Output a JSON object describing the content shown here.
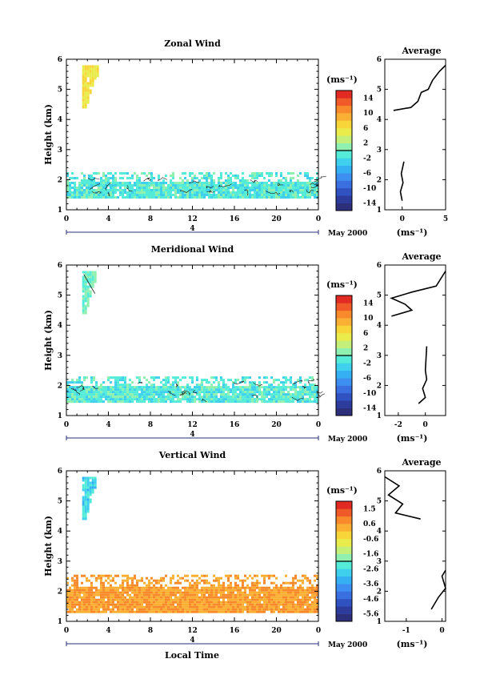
{
  "common": {
    "x_ticks": [
      "0",
      "4",
      "8",
      "12",
      "16",
      "20",
      "0"
    ],
    "y_label": "Height (km)",
    "y_ticks": [
      "1",
      "2",
      "3",
      "4",
      "5",
      "6"
    ],
    "date_label": "May 2000",
    "date_day": "4",
    "x_label": "Local Time",
    "avg_title": "Average",
    "unit": "(ms⁻¹)"
  },
  "chart_data": [
    {
      "type": "heatmap",
      "title": "Zonal Wind",
      "colorbar_ticks": [
        "14",
        "10",
        "6",
        "2",
        "-2",
        "-6",
        "-10",
        "-14"
      ],
      "colorbar_range": [
        -16,
        16
      ],
      "x_range": [
        0,
        24
      ],
      "y_range": [
        1,
        6
      ],
      "regions": [
        {
          "x": [
            1.5,
            3.0
          ],
          "y": [
            4.4,
            5.8
          ],
          "value": 6
        },
        {
          "x": [
            0,
            24
          ],
          "y": [
            1.45,
            2.25
          ],
          "value": -1
        }
      ],
      "average": {
        "type": "line",
        "xlim": [
          -2,
          5
        ],
        "x_ticks": [
          "0",
          "5"
        ],
        "upper": [
          [
            -1,
            4.3
          ],
          [
            1,
            4.4
          ],
          [
            1.8,
            4.6
          ],
          [
            2.2,
            4.9
          ],
          [
            3,
            5.0
          ],
          [
            3.5,
            5.3
          ],
          [
            4.3,
            5.6
          ],
          [
            5,
            5.8
          ]
        ],
        "lower": [
          [
            0,
            1.3
          ],
          [
            -0.2,
            1.6
          ],
          [
            0.1,
            1.9
          ],
          [
            -0.1,
            2.2
          ],
          [
            0.2,
            2.6
          ]
        ]
      }
    },
    {
      "type": "heatmap",
      "title": "Meridional Wind",
      "colorbar_ticks": [
        "14",
        "10",
        "6",
        "2",
        "-2",
        "-6",
        "-10",
        "-14"
      ],
      "colorbar_range": [
        -16,
        16
      ],
      "x_range": [
        0,
        24
      ],
      "y_range": [
        1,
        6
      ],
      "regions": [
        {
          "x": [
            1.5,
            2.8
          ],
          "y": [
            4.4,
            5.8
          ],
          "value": 0
        },
        {
          "x": [
            0,
            24
          ],
          "y": [
            1.45,
            2.3
          ],
          "value": -1
        }
      ],
      "average": {
        "type": "line",
        "xlim": [
          -3,
          1.5
        ],
        "x_ticks": [
          "-2",
          "0"
        ],
        "upper": [
          [
            -2.5,
            4.3
          ],
          [
            -1.0,
            4.5
          ],
          [
            -1.5,
            4.7
          ],
          [
            -2.5,
            4.9
          ],
          [
            -1.0,
            5.1
          ],
          [
            0.8,
            5.3
          ],
          [
            1.5,
            5.8
          ]
        ],
        "lower": [
          [
            -0.5,
            1.4
          ],
          [
            0,
            1.6
          ],
          [
            -0.2,
            1.9
          ],
          [
            0.1,
            2.2
          ],
          [
            0,
            2.5
          ],
          [
            0.1,
            3.3
          ]
        ]
      }
    },
    {
      "type": "heatmap",
      "title": "Vertical Wind",
      "colorbar_ticks": [
        "1.5",
        "0.6",
        "-0.6",
        "-1.6",
        "-2.6",
        "-3.6",
        "-4.6",
        "-5.6"
      ],
      "colorbar_range": [
        -6.0,
        2.0
      ],
      "x_range": [
        0,
        24
      ],
      "y_range": [
        1,
        6
      ],
      "regions": [
        {
          "x": [
            1.5,
            2.8
          ],
          "y": [
            4.4,
            5.8
          ],
          "value": -2.6
        },
        {
          "x": [
            0,
            24
          ],
          "y": [
            1.35,
            2.55
          ],
          "value": 0.5
        }
      ],
      "average": {
        "type": "line",
        "xlim": [
          -1.6,
          0.1
        ],
        "x_ticks": [
          "-1",
          "0"
        ],
        "upper": [
          [
            -0.6,
            4.4
          ],
          [
            -1.3,
            4.6
          ],
          [
            -1.1,
            4.9
          ],
          [
            -1.5,
            5.2
          ],
          [
            -1.2,
            5.5
          ],
          [
            -1.6,
            5.8
          ]
        ],
        "lower": [
          [
            -0.3,
            1.4
          ],
          [
            -0.1,
            1.8
          ],
          [
            0.1,
            2.1
          ],
          [
            0.0,
            2.5
          ],
          [
            0.1,
            2.7
          ]
        ]
      }
    }
  ]
}
